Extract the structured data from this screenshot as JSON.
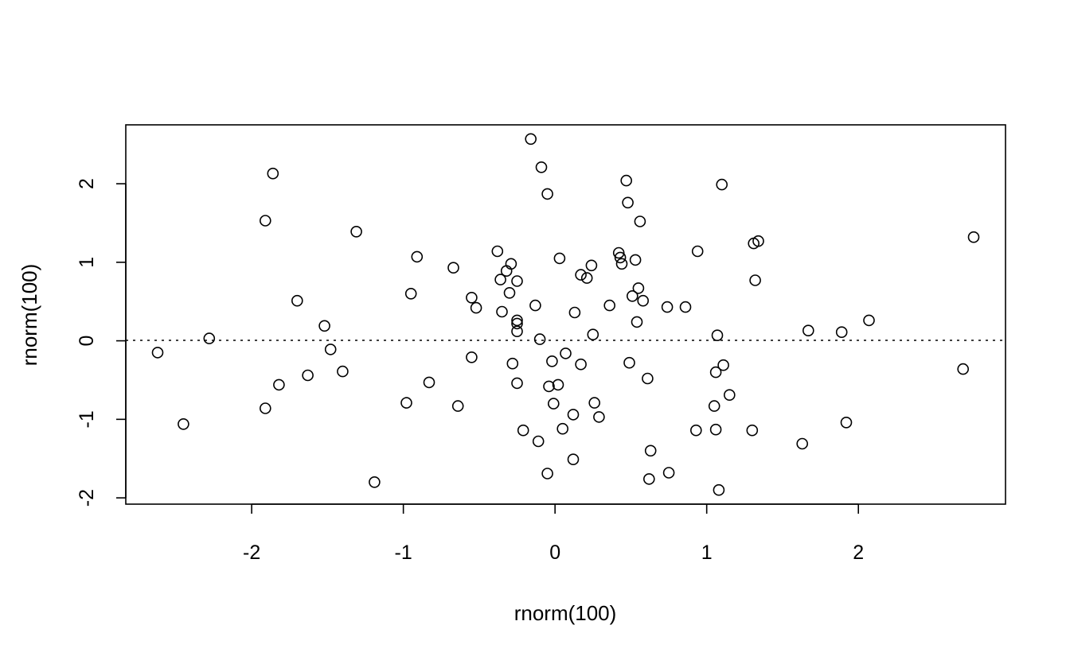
{
  "chart_data": {
    "type": "scatter",
    "title": "",
    "xlabel": "rnorm(100)",
    "ylabel": "rnorm(100)",
    "xlim": [
      -2.83,
      2.97
    ],
    "ylim": [
      -2.08,
      2.75
    ],
    "x_ticks": [
      -2,
      -1,
      0,
      1,
      2
    ],
    "x_tick_labels": [
      "-2",
      "-1",
      "0",
      "1",
      "2"
    ],
    "y_ticks": [
      -2,
      -1,
      0,
      1,
      2
    ],
    "y_tick_labels": [
      "-2",
      "-1",
      "0",
      "1",
      "2"
    ],
    "grid": false,
    "marker": "open-circle",
    "colors": {
      "points": "#000000",
      "axes": "#000000",
      "background": "#ffffff"
    },
    "reference_line": {
      "y": 0,
      "style": "dotted"
    },
    "points": [
      [
        -2.62,
        -0.15
      ],
      [
        -2.45,
        -1.06
      ],
      [
        -2.28,
        0.03
      ],
      [
        -1.91,
        1.53
      ],
      [
        -1.91,
        -0.86
      ],
      [
        -1.86,
        2.13
      ],
      [
        -1.82,
        -0.56
      ],
      [
        -1.7,
        0.51
      ],
      [
        -1.63,
        -0.44
      ],
      [
        -1.52,
        0.19
      ],
      [
        -1.48,
        -0.11
      ],
      [
        -1.4,
        -0.39
      ],
      [
        -1.31,
        1.39
      ],
      [
        -1.19,
        -1.8
      ],
      [
        -0.98,
        -0.79
      ],
      [
        -0.95,
        0.6
      ],
      [
        -0.91,
        1.07
      ],
      [
        -0.83,
        -0.53
      ],
      [
        -0.67,
        0.93
      ],
      [
        -0.64,
        -0.83
      ],
      [
        -0.55,
        0.55
      ],
      [
        -0.55,
        -0.21
      ],
      [
        -0.52,
        0.42
      ],
      [
        -0.38,
        1.14
      ],
      [
        -0.36,
        0.78
      ],
      [
        -0.35,
        0.37
      ],
      [
        -0.32,
        0.89
      ],
      [
        -0.3,
        0.61
      ],
      [
        -0.29,
        0.98
      ],
      [
        -0.28,
        -0.29
      ],
      [
        -0.25,
        0.76
      ],
      [
        -0.25,
        0.26
      ],
      [
        -0.25,
        0.22
      ],
      [
        -0.25,
        0.12
      ],
      [
        -0.25,
        -0.54
      ],
      [
        -0.21,
        -1.14
      ],
      [
        -0.16,
        2.57
      ],
      [
        -0.13,
        0.45
      ],
      [
        -0.11,
        -1.28
      ],
      [
        -0.1,
        0.02
      ],
      [
        -0.09,
        2.21
      ],
      [
        -0.05,
        1.87
      ],
      [
        -0.05,
        -1.69
      ],
      [
        -0.04,
        -0.58
      ],
      [
        -0.02,
        -0.26
      ],
      [
        -0.01,
        -0.8
      ],
      [
        0.02,
        -0.56
      ],
      [
        0.03,
        1.05
      ],
      [
        0.05,
        -1.12
      ],
      [
        0.07,
        -0.16
      ],
      [
        0.12,
        -0.94
      ],
      [
        0.12,
        -1.51
      ],
      [
        0.13,
        0.36
      ],
      [
        0.17,
        0.84
      ],
      [
        0.17,
        -0.3
      ],
      [
        0.21,
        0.8
      ],
      [
        0.24,
        0.96
      ],
      [
        0.25,
        0.08
      ],
      [
        0.26,
        -0.79
      ],
      [
        0.29,
        -0.97
      ],
      [
        0.36,
        0.45
      ],
      [
        0.42,
        1.12
      ],
      [
        0.43,
        1.06
      ],
      [
        0.44,
        0.98
      ],
      [
        0.47,
        2.04
      ],
      [
        0.48,
        1.76
      ],
      [
        0.49,
        -0.28
      ],
      [
        0.51,
        0.57
      ],
      [
        0.53,
        1.03
      ],
      [
        0.54,
        0.24
      ],
      [
        0.55,
        0.67
      ],
      [
        0.56,
        1.52
      ],
      [
        0.58,
        0.51
      ],
      [
        0.61,
        -0.48
      ],
      [
        0.62,
        -1.76
      ],
      [
        0.63,
        -1.4
      ],
      [
        0.74,
        0.43
      ],
      [
        0.75,
        -1.68
      ],
      [
        0.86,
        0.43
      ],
      [
        0.93,
        -1.14
      ],
      [
        0.94,
        1.14
      ],
      [
        1.05,
        -0.83
      ],
      [
        1.06,
        -0.4
      ],
      [
        1.06,
        -1.13
      ],
      [
        1.07,
        0.07
      ],
      [
        1.08,
        -1.9
      ],
      [
        1.1,
        1.99
      ],
      [
        1.11,
        -0.31
      ],
      [
        1.15,
        -0.69
      ],
      [
        1.3,
        -1.14
      ],
      [
        1.31,
        1.24
      ],
      [
        1.32,
        0.77
      ],
      [
        1.34,
        1.27
      ],
      [
        1.63,
        -1.31
      ],
      [
        1.67,
        0.13
      ],
      [
        1.89,
        0.11
      ],
      [
        1.92,
        -1.04
      ],
      [
        2.07,
        0.26
      ],
      [
        2.69,
        -0.36
      ],
      [
        2.76,
        1.32
      ]
    ]
  }
}
